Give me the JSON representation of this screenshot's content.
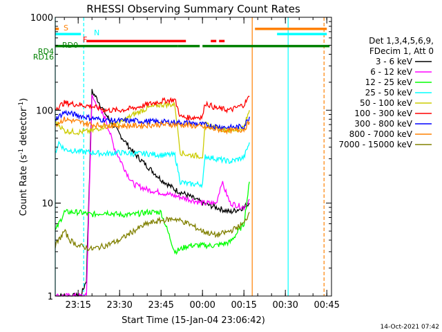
{
  "chart_data": {
    "type": "line",
    "title": "RHESSI Observing Summary Count Rates",
    "xlabel": "Start Time (15-Jan-04 23:06:42)",
    "ylabel": "Count Rate (s⁻¹ detector⁻¹)",
    "ylabel_main": "Count Rate (s",
    "ylabel_sup1": "-1",
    "ylabel_mid": " detector",
    "ylabel_sup2": "-1",
    "ylabel_end": ")",
    "y_scale": "log",
    "ylim": [
      1,
      1000
    ],
    "xlim": [
      "23:06:42",
      "00:46:42"
    ],
    "x_ticks": [
      {
        "label": "23:15",
        "t": "23:15"
      },
      {
        "label": "23:30",
        "t": "23:30"
      },
      {
        "label": "23:45",
        "t": "23:45"
      },
      {
        "label": "00:00",
        "t": "00:00"
      },
      {
        "label": "00:15",
        "t": "00:15"
      },
      {
        "label": "00:30",
        "t": "00:30"
      },
      {
        "label": "00:45",
        "t": "00:45"
      }
    ],
    "y_ticks": [
      {
        "label": "1",
        "v": 1
      },
      {
        "label": "10",
        "v": 10
      },
      {
        "label": "100",
        "v": 100
      },
      {
        "label": "1000",
        "v": 1000
      }
    ],
    "header": [
      "Det 1,3,4,5,6,9,",
      "FDecim 1, Att 0"
    ],
    "series": [
      {
        "name": "3 - 6 keV",
        "color": "#000000",
        "x": [
          "23:06:42",
          "23:12",
          "23:16",
          "23:18",
          "23:20",
          "23:22",
          "23:25",
          "23:30",
          "23:35",
          "23:40",
          "23:45",
          "23:50",
          "23:55",
          "00:00",
          "00:05",
          "00:10",
          "00:15",
          "00:17"
        ],
        "y": [
          1,
          1,
          1,
          1.5,
          160,
          130,
          90,
          55,
          35,
          25,
          18,
          14,
          12,
          10,
          9,
          8,
          9,
          10
        ]
      },
      {
        "name": "6 - 12 keV",
        "color": "#ff00ff",
        "x": [
          "23:06:42",
          "23:10",
          "23:13",
          "23:16",
          "23:18",
          "23:20",
          "23:22",
          "23:25",
          "23:28",
          "23:30",
          "23:33",
          "23:35",
          "23:40",
          "23:45",
          "23:50",
          "23:55",
          "00:00",
          "00:05",
          "00:07",
          "00:10",
          "00:15",
          "00:17"
        ],
        "y": [
          1,
          1,
          1,
          1,
          1,
          140,
          110,
          80,
          40,
          30,
          20,
          16,
          14,
          13,
          12,
          11,
          10,
          10,
          17,
          10,
          9,
          11
        ]
      },
      {
        "name": "12 - 25 keV",
        "color": "#00ff00",
        "x": [
          "23:06:42",
          "23:08",
          "23:10",
          "23:15",
          "23:20",
          "23:25",
          "23:30",
          "23:35",
          "23:40",
          "23:45",
          "23:50",
          "23:55",
          "00:00",
          "00:05",
          "00:10",
          "00:15",
          "00:17"
        ],
        "y": [
          5,
          6,
          8,
          8,
          7.5,
          8,
          7.5,
          7.5,
          8,
          8,
          3,
          3.5,
          3.5,
          3.5,
          3.8,
          6,
          17
        ]
      },
      {
        "name": "25 - 50 keV",
        "color": "#00ffff",
        "x": [
          "23:06:42",
          "23:08",
          "23:10",
          "23:15",
          "23:20",
          "23:25",
          "23:30",
          "23:35",
          "23:40",
          "23:45",
          "23:50",
          "23:52",
          "23:55",
          "00:00",
          "00:01",
          "00:05",
          "00:10",
          "00:15",
          "00:17"
        ],
        "y": [
          35,
          45,
          38,
          36,
          35,
          34,
          35,
          34,
          34,
          33,
          33,
          17,
          16,
          16,
          32,
          30,
          28,
          31,
          45
        ]
      },
      {
        "name": "50 - 100 keV",
        "color": "#cccc00",
        "x": [
          "23:06:42",
          "23:08",
          "23:10",
          "23:15",
          "23:20",
          "23:25",
          "23:30",
          "23:35",
          "23:40",
          "23:45",
          "23:50",
          "23:52",
          "23:55",
          "00:00",
          "00:01",
          "00:05",
          "00:10",
          "00:15",
          "00:17"
        ],
        "y": [
          75,
          70,
          60,
          58,
          60,
          68,
          72,
          90,
          105,
          115,
          115,
          35,
          33,
          32,
          70,
          65,
          60,
          65,
          100
        ]
      },
      {
        "name": "100 - 300 keV",
        "color": "#ff0000",
        "x": [
          "23:06:42",
          "23:08",
          "23:10",
          "23:15",
          "23:20",
          "23:25",
          "23:30",
          "23:35",
          "23:40",
          "23:45",
          "23:50",
          "23:52",
          "23:55",
          "00:00",
          "00:01",
          "00:05",
          "00:10",
          "00:15",
          "00:17"
        ],
        "y": [
          105,
          110,
          120,
          115,
          110,
          100,
          100,
          105,
          115,
          125,
          130,
          85,
          83,
          85,
          120,
          105,
          100,
          115,
          140
        ]
      },
      {
        "name": "300 - 800 keV",
        "color": "#0000ff",
        "x": [
          "23:06:42",
          "23:10",
          "23:15",
          "23:20",
          "23:25",
          "23:30",
          "23:35",
          "23:40",
          "23:45",
          "23:50",
          "23:55",
          "00:00",
          "00:05",
          "00:10",
          "00:15",
          "00:17"
        ],
        "y": [
          80,
          95,
          88,
          82,
          78,
          77,
          77,
          76,
          75,
          74,
          73,
          70,
          67,
          65,
          67,
          85
        ]
      },
      {
        "name": "800 - 7000 keV",
        "color": "#ff8000",
        "x": [
          "23:06:42",
          "23:10",
          "23:15",
          "23:20",
          "23:25",
          "23:30",
          "23:35",
          "23:40",
          "23:45",
          "23:50",
          "23:55",
          "00:00",
          "00:05",
          "00:10",
          "00:15",
          "00:17"
        ],
        "y": [
          70,
          80,
          75,
          70,
          68,
          68,
          68,
          69,
          70,
          70,
          69,
          66,
          62,
          60,
          62,
          75
        ]
      },
      {
        "name": "7000 - 15000 keV",
        "color": "#808000",
        "x": [
          "23:06:42",
          "23:08",
          "23:10",
          "23:12",
          "23:15",
          "23:20",
          "23:25",
          "23:30",
          "23:35",
          "23:40",
          "23:45",
          "23:50",
          "23:55",
          "00:00",
          "00:05",
          "00:10",
          "00:15",
          "00:17"
        ],
        "y": [
          3.5,
          4,
          5,
          4,
          3.5,
          3.2,
          3.5,
          4,
          5,
          6,
          6.5,
          6.8,
          6,
          5,
          4.5,
          5,
          6,
          8
        ]
      }
    ],
    "state_bars": [
      {
        "label": "S",
        "color": "#ff8000",
        "segments": [
          [
            "23:06:42",
            "23:08"
          ],
          [
            "00:19",
            "00:45"
          ]
        ],
        "level": 750
      },
      {
        "label": "N",
        "color": "#00ffff",
        "segments": [
          [
            "23:06:42",
            "23:16"
          ],
          [
            "00:27",
            "00:45"
          ]
        ],
        "level": 660
      },
      {
        "label": "F",
        "color": "#ff0000",
        "segments": [
          [
            "23:18",
            "23:54"
          ],
          [
            "00:03",
            "00:05"
          ],
          [
            "00:06",
            "00:08"
          ]
        ],
        "level": 555
      },
      {
        "label": "RD0",
        "color": "#008000",
        "segments": [
          [
            "23:06:42",
            "23:51"
          ],
          [
            "23:51",
            "23:59"
          ],
          [
            "00:00",
            "00:46"
          ]
        ],
        "level": 490
      },
      {
        "label": "RD4",
        "color": "#008000",
        "segments": [],
        "level": 420
      },
      {
        "label": "RD16",
        "color": "#008000",
        "segments": [],
        "level": 370
      }
    ],
    "vertical_markers": [
      {
        "t": "23:06:42",
        "color": "#00ffff"
      },
      {
        "t": "23:17",
        "color": "#00ffff"
      },
      {
        "t": "00:31",
        "color": "#00ffff"
      },
      {
        "t": "00:18",
        "color": "#ff8000"
      },
      {
        "t": "00:44",
        "color": "#ff8000"
      }
    ]
  },
  "footer": {
    "date_stamp": "14-Oct-2021 07:42"
  }
}
